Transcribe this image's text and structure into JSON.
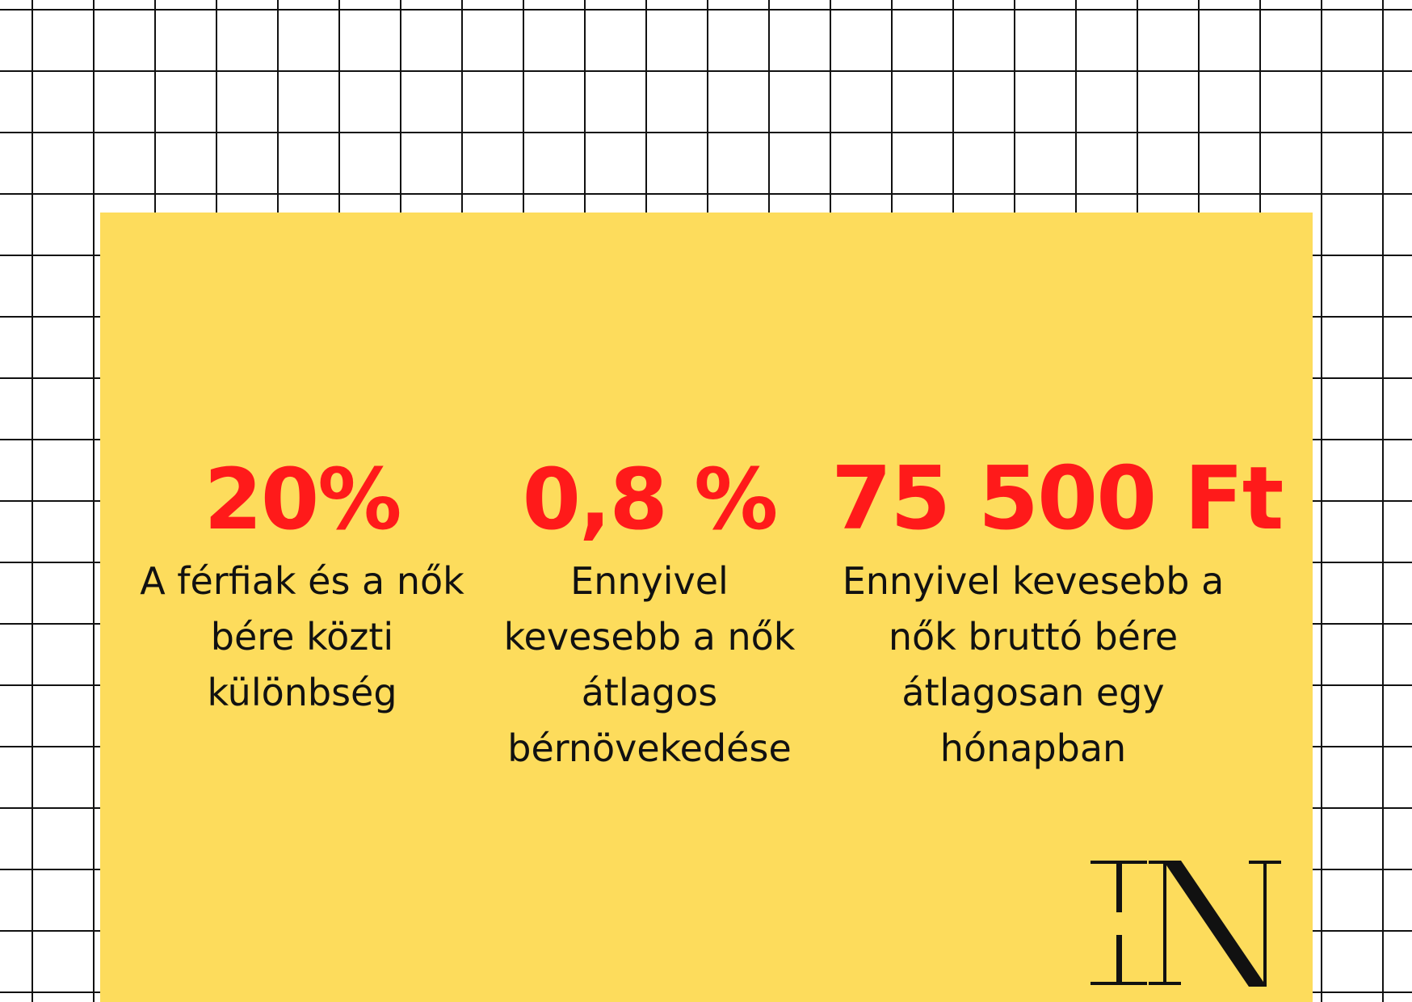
{
  "stats": [
    {
      "value": "20%",
      "caption": "A férfiak és a nők bére közti különbség"
    },
    {
      "value": "0,8 %",
      "caption": "Ennyivel kevesebb a nők átlagos bérnövekedése"
    },
    {
      "value": "75 500 Ft",
      "caption": "Ennyivel kevesebb a nők bruttó bére átlagosan egy hónapban"
    }
  ],
  "logo": {
    "text": "IN"
  },
  "colors": {
    "background": "#ffffff",
    "grid": "#111111",
    "card": "#fddc5c",
    "accent": "#ff1a1a",
    "text": "#111111"
  }
}
